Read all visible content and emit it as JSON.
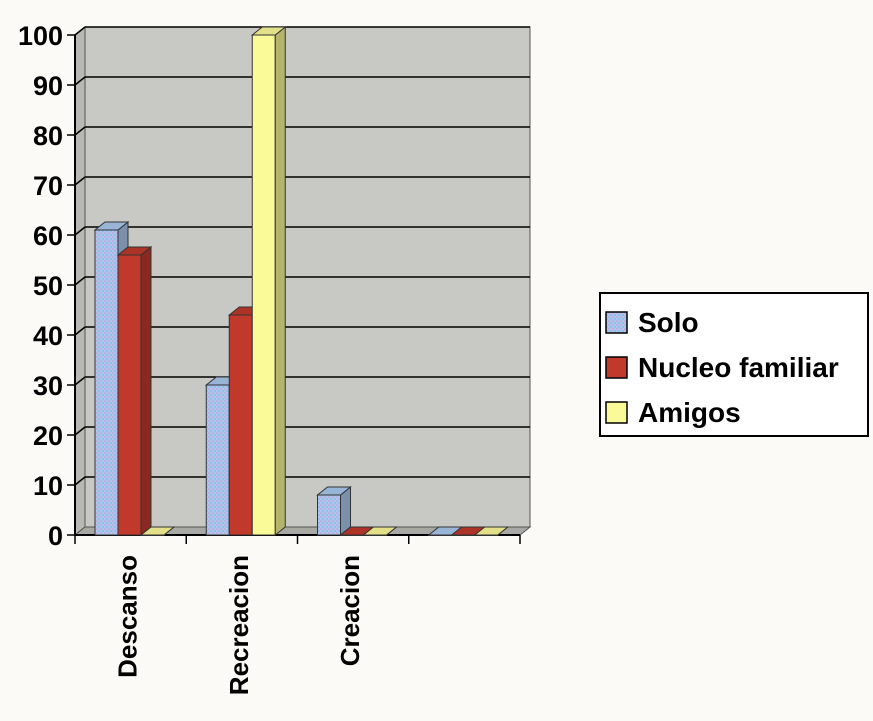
{
  "chart_data": {
    "type": "bar",
    "categories": [
      "Descanso",
      "Recreacion",
      "Creacion",
      ""
    ],
    "series": [
      {
        "name": "Solo",
        "values": [
          61,
          30,
          8,
          0
        ]
      },
      {
        "name": "Nucleo familiar",
        "values": [
          56,
          44,
          0,
          0
        ]
      },
      {
        "name": "Amigos",
        "values": [
          0,
          100,
          0,
          0
        ]
      }
    ],
    "ylim": [
      0,
      100
    ],
    "yticks": [
      0,
      10,
      20,
      30,
      40,
      50,
      60,
      70,
      80,
      90,
      100
    ],
    "grid": true,
    "legend_position": "right",
    "colors": {
      "Solo": "#a9c8ee",
      "Nucleo familiar": "#c0392b",
      "Amigos": "#fbfa98",
      "plot_background": "#c8c8c4",
      "gridline": "#000000"
    },
    "style": "3d-clustered"
  }
}
